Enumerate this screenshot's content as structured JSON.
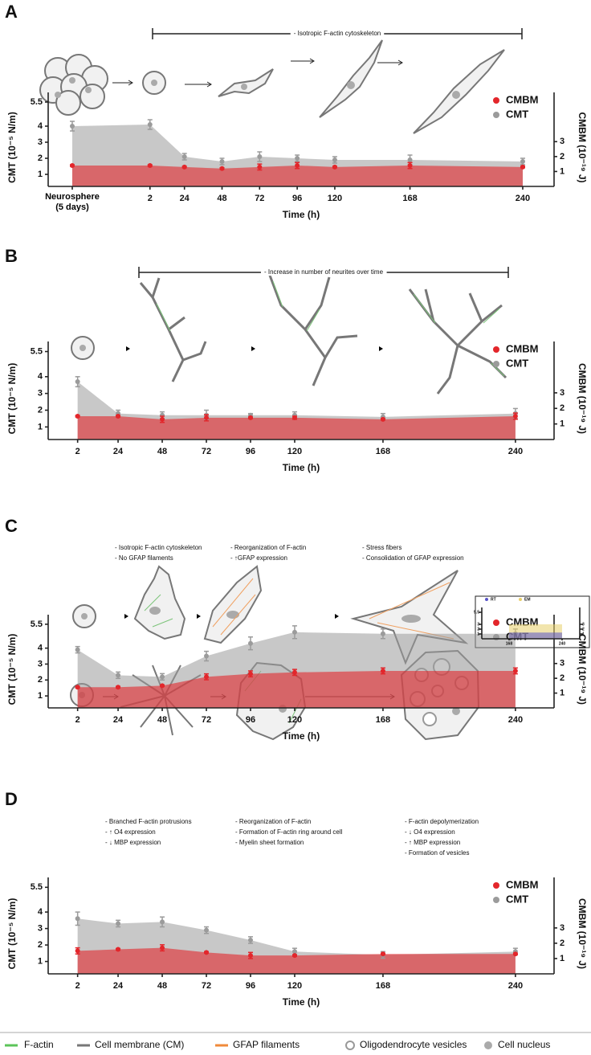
{
  "chart_data": [
    {
      "type": "area",
      "panel": "A",
      "annotations": [
        [
          "- Isotropic F-actin cytoskeleton"
        ]
      ],
      "categories": [
        "Neurosphere (5 days)",
        "2",
        "24",
        "48",
        "72",
        "96",
        "120",
        "168",
        "240"
      ],
      "xlim": [
        -63,
        260
      ],
      "xlabel": "Time (h)",
      "ylabel": "CMT (10⁻⁵ N/m)",
      "y2label": "CMBM (10⁻¹⁹ J)",
      "ylim": [
        0.25,
        6.1
      ],
      "yticks": [
        1,
        2,
        3,
        4,
        5.5
      ],
      "y2lim": [
        0,
        6.3
      ],
      "y2ticks": [
        1,
        2,
        3
      ],
      "series": [
        {
          "name": "CMBM",
          "color": "#e3262b",
          "axis": "y2",
          "values": [
            1.4,
            1.4,
            1.3,
            1.2,
            1.3,
            1.4,
            1.3,
            1.4,
            1.3
          ],
          "errors": [
            0.05,
            0.05,
            0.05,
            0.05,
            0.2,
            0.2,
            0.05,
            0.2,
            0.05
          ]
        },
        {
          "name": "CMT",
          "color": "#9b9b9b",
          "values": [
            4.0,
            4.1,
            2.1,
            1.8,
            2.1,
            2.0,
            1.9,
            1.9,
            1.8
          ],
          "errors": [
            0.3,
            0.3,
            0.2,
            0.2,
            0.3,
            0.2,
            0.2,
            0.3,
            0.2
          ]
        }
      ]
    },
    {
      "type": "area",
      "panel": "B",
      "annotations": [
        [
          "- Increase in number of neurites over time"
        ]
      ],
      "x": [
        2,
        24,
        48,
        72,
        96,
        120,
        168,
        240
      ],
      "xlim": [
        -14,
        261
      ],
      "xlabel": "Time (h)",
      "ylabel": "CMT (10⁻⁵ N/m)",
      "y2label": "CMBM (10⁻¹⁹ J)",
      "ylim": [
        0.25,
        6.1
      ],
      "yticks": [
        1,
        2,
        3,
        4,
        5.5
      ],
      "y2lim": [
        0,
        6.3
      ],
      "y2ticks": [
        1,
        2,
        3
      ],
      "series": [
        {
          "name": "CMBM",
          "color": "#e3262b",
          "axis": "y2",
          "values": [
            1.5,
            1.5,
            1.3,
            1.4,
            1.4,
            1.4,
            1.3,
            1.5
          ],
          "errors": [
            0.05,
            0.05,
            0.2,
            0.2,
            0.05,
            0.1,
            0.05,
            0.2
          ]
        },
        {
          "name": "CMT",
          "color": "#9b9b9b",
          "values": [
            3.7,
            1.8,
            1.7,
            1.7,
            1.7,
            1.7,
            1.6,
            1.8
          ],
          "errors": [
            0.3,
            0.2,
            0.2,
            0.3,
            0.1,
            0.2,
            0.2,
            0.3
          ]
        }
      ]
    },
    {
      "type": "area",
      "panel": "C",
      "annotations": [
        [
          "- Isotropic F-actin cytoskeleton",
          "- No GFAP filaments"
        ],
        [
          "- Reorganization of F-actin",
          "- ↑GFAP expression"
        ],
        [
          "- Stress fibers",
          "- Consolidation of GFAP expression"
        ]
      ],
      "x": [
        2,
        24,
        48,
        72,
        96,
        120,
        168,
        240
      ],
      "xlim": [
        -14,
        261
      ],
      "xlabel": "Time (h)",
      "ylabel": "CMT (10⁻⁵ N/m)",
      "y2label": "CMBM (10⁻¹⁹ J)",
      "ylim": [
        0.25,
        6.1
      ],
      "yticks": [
        1,
        2,
        3,
        4,
        5.5
      ],
      "y2lim": [
        0,
        6.3
      ],
      "y2ticks": [
        1,
        2,
        3
      ],
      "series": [
        {
          "name": "CMBM",
          "color": "#e3262b",
          "axis": "y2",
          "values": [
            1.4,
            1.4,
            1.5,
            2.1,
            2.3,
            2.4,
            2.5,
            2.5
          ],
          "errors": [
            0.05,
            0.05,
            0.05,
            0.2,
            0.2,
            0.2,
            0.2,
            0.2
          ]
        },
        {
          "name": "CMT",
          "color": "#9b9b9b",
          "values": [
            3.9,
            2.3,
            2.2,
            3.5,
            4.3,
            5.0,
            4.9,
            4.9
          ],
          "errors": [
            0.2,
            0.2,
            0.2,
            0.3,
            0.4,
            0.4,
            0.3,
            0.3
          ]
        }
      ]
    },
    {
      "type": "area",
      "panel": "D",
      "annotations": [
        [
          "- Branched F-actin protrusions",
          "- ↑ O4 expression",
          "- ↓ MBP expression"
        ],
        [
          "- Reorganization of F-actin",
          "- Formation of F-actin ring around cell",
          "- Myelin sheet formation"
        ],
        [
          "- F-actin depolymerization",
          "- ↓ O4 expression",
          "- ↑ MBP expression",
          "- Formation of vesicles"
        ]
      ],
      "x": [
        2,
        24,
        48,
        72,
        96,
        120,
        168,
        240
      ],
      "xlim": [
        -14,
        261
      ],
      "xlabel": "Time (h)",
      "ylabel": "CMT (10⁻⁵ N/m)",
      "y2label": "CMBM (10⁻¹⁹ J)",
      "ylim": [
        0.25,
        6.1
      ],
      "yticks": [
        1,
        2,
        3,
        4,
        5.5
      ],
      "y2lim": [
        0,
        6.3
      ],
      "y2ticks": [
        1,
        2,
        3
      ],
      "series": [
        {
          "name": "CMBM",
          "color": "#e3262b",
          "axis": "y2",
          "values": [
            1.5,
            1.6,
            1.7,
            1.4,
            1.2,
            1.2,
            1.3,
            1.3
          ],
          "errors": [
            0.2,
            0.05,
            0.2,
            0.05,
            0.2,
            0.05,
            0.05,
            0.05
          ]
        },
        {
          "name": "CMT",
          "color": "#9b9b9b",
          "values": [
            3.6,
            3.3,
            3.4,
            2.9,
            2.3,
            1.6,
            1.4,
            1.6
          ],
          "errors": [
            0.4,
            0.2,
            0.3,
            0.2,
            0.2,
            0.2,
            0.2,
            0.2
          ]
        }
      ]
    },
    {
      "type": "area",
      "x": [
        168,
        240
      ],
      "xlim": [
        131,
        264
      ],
      "ylim": [
        0,
        6.5
      ],
      "yticks": [
        1,
        2,
        3,
        5.5
      ],
      "y2lim": [
        0,
        6.5
      ],
      "y2ticks": [
        1,
        2,
        3
      ],
      "series": [
        {
          "name": "RT",
          "color": "#5a55c8",
          "axis": "y2",
          "values": [
            1.3,
            1.3
          ]
        },
        {
          "name": "EM",
          "color": "#e8cf6a",
          "values": [
            3,
            3
          ]
        }
      ]
    }
  ],
  "key": [
    "F-actin",
    "Cell membrane (CM)",
    "GFAP filaments",
    "Oligodendrocyte vesicles",
    "Cell nucleus"
  ]
}
